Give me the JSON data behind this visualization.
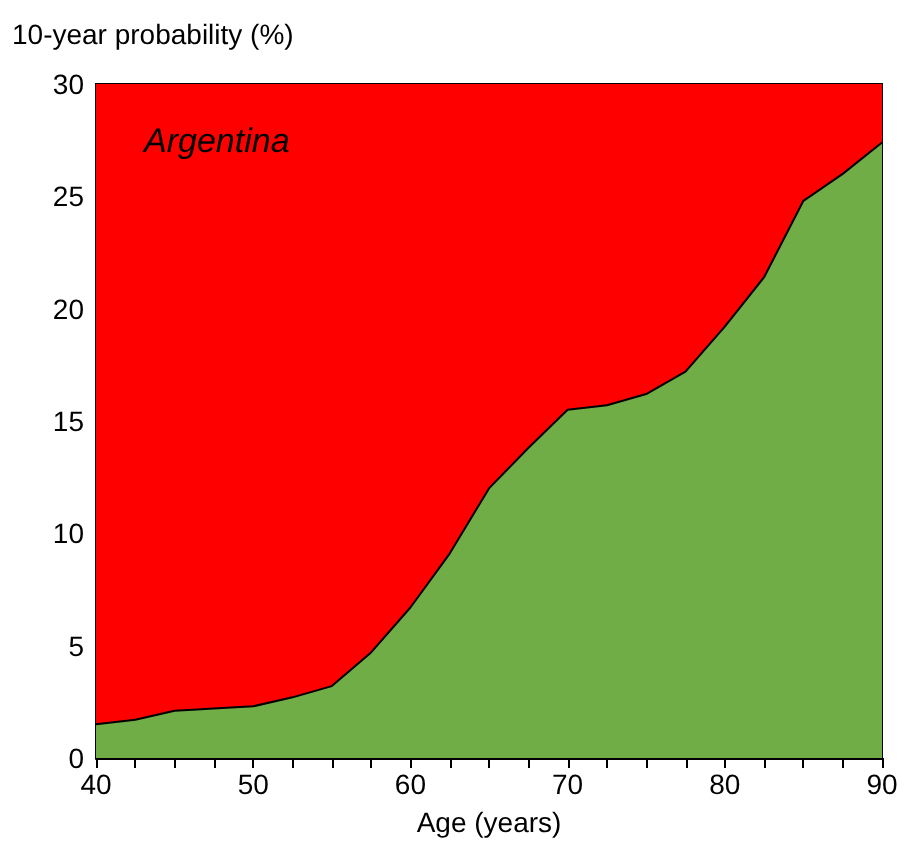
{
  "chart_data": {
    "type": "area",
    "ylabel": "10-year probability (%)",
    "xlabel": "Age (years)",
    "annotations": [
      "Argentina"
    ],
    "x": [
      40,
      42.5,
      45,
      47.5,
      50,
      52.5,
      55,
      57.5,
      60,
      62.5,
      65,
      67.5,
      70,
      72.5,
      75,
      77.5,
      80,
      82.5,
      85,
      87.5,
      90
    ],
    "series": [
      {
        "color": "#70ad47",
        "values": [
          1.5,
          1.7,
          2.1,
          2.2,
          2.3,
          2.7,
          3.2,
          4.7,
          6.7,
          9.1,
          12.0,
          13.8,
          15.5,
          15.7,
          16.2,
          17.2,
          19.2,
          21.4,
          24.8,
          26.0,
          27.4
        ]
      }
    ],
    "bands": [
      {
        "axis": "y",
        "from": 0,
        "to": 30,
        "color": "#ff0000"
      }
    ],
    "xlim": [
      40,
      90
    ],
    "xticks": [
      40,
      {
        "value": 42.5,
        "label": null
      },
      {
        "value": 45,
        "label": null
      },
      {
        "value": 47.5,
        "label": null
      },
      50,
      {
        "value": 52.5,
        "label": null
      },
      {
        "value": 55,
        "label": null
      },
      {
        "value": 57.5,
        "label": null
      },
      60,
      {
        "value": 62.5,
        "label": null
      },
      {
        "value": 65,
        "label": null
      },
      {
        "value": 67.5,
        "label": null
      },
      70,
      {
        "value": 72.5,
        "label": null
      },
      {
        "value": 75,
        "label": null
      },
      {
        "value": 77.5,
        "label": null
      },
      80,
      {
        "value": 82.5,
        "label": null
      },
      {
        "value": 85,
        "label": null
      },
      {
        "value": 87.5,
        "label": null
      },
      90
    ],
    "ylim": [
      0,
      30
    ],
    "yticks": [
      0,
      5,
      10,
      15,
      20,
      25,
      30
    ],
    "grid": false
  }
}
